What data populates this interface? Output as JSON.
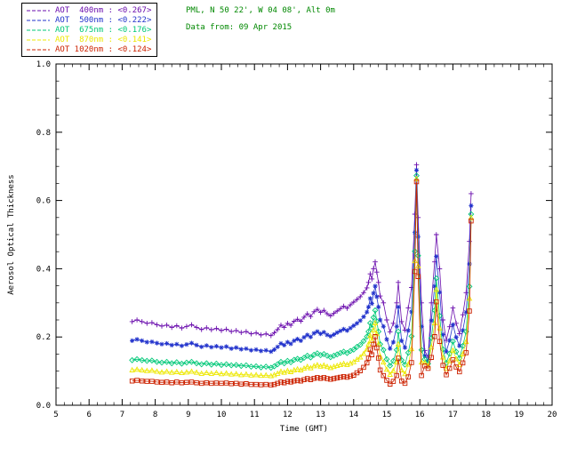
{
  "header": {
    "station_line": "PML, N 50 22', W 04 08', Alt 0m",
    "date_line": "Data from: 09 Apr 2015",
    "text_color": "#008800"
  },
  "chart_data": {
    "type": "line",
    "title": "",
    "xlabel": "Time (GMT)",
    "ylabel": "Aerosol Optical Thickness",
    "xlim": [
      5,
      20
    ],
    "ylim": [
      0.0,
      1.0
    ],
    "xticks": [
      5,
      6,
      7,
      8,
      9,
      10,
      11,
      12,
      13,
      14,
      15,
      16,
      17,
      18,
      19,
      20
    ],
    "yticks": [
      0.0,
      0.2,
      0.4,
      0.6,
      0.8,
      1.0
    ],
    "grid": false,
    "legend_position": "top-left",
    "x": [
      7.3,
      7.45,
      7.6,
      7.75,
      7.9,
      8.05,
      8.2,
      8.35,
      8.5,
      8.65,
      8.8,
      8.95,
      9.1,
      9.25,
      9.4,
      9.55,
      9.7,
      9.85,
      10.0,
      10.15,
      10.3,
      10.45,
      10.6,
      10.75,
      10.9,
      11.05,
      11.2,
      11.35,
      11.5,
      11.6,
      11.7,
      11.8,
      11.9,
      12.0,
      12.1,
      12.2,
      12.3,
      12.4,
      12.5,
      12.6,
      12.7,
      12.8,
      12.9,
      13.0,
      13.1,
      13.2,
      13.3,
      13.4,
      13.5,
      13.6,
      13.7,
      13.8,
      13.9,
      14.0,
      14.1,
      14.2,
      14.3,
      14.4,
      14.45,
      14.5,
      14.55,
      14.6,
      14.65,
      14.7,
      14.75,
      14.8,
      14.9,
      15.0,
      15.1,
      15.2,
      15.3,
      15.35,
      15.45,
      15.55,
      15.65,
      15.75,
      15.85,
      15.9,
      15.95,
      16.05,
      16.15,
      16.25,
      16.35,
      16.45,
      16.5,
      16.6,
      16.7,
      16.8,
      16.9,
      17.0,
      17.1,
      17.2,
      17.3,
      17.4,
      17.5,
      17.55
    ],
    "series": [
      {
        "name": "AOT  400nm",
        "mean_label": "<0.267>",
        "color": "#6a0dad",
        "marker": "plus",
        "values": [
          0.245,
          0.25,
          0.245,
          0.24,
          0.242,
          0.236,
          0.232,
          0.235,
          0.228,
          0.233,
          0.226,
          0.231,
          0.236,
          0.228,
          0.222,
          0.227,
          0.221,
          0.225,
          0.219,
          0.223,
          0.216,
          0.219,
          0.213,
          0.216,
          0.209,
          0.212,
          0.206,
          0.209,
          0.204,
          0.212,
          0.222,
          0.235,
          0.228,
          0.24,
          0.234,
          0.246,
          0.252,
          0.246,
          0.258,
          0.268,
          0.26,
          0.274,
          0.281,
          0.272,
          0.278,
          0.268,
          0.262,
          0.269,
          0.276,
          0.283,
          0.29,
          0.284,
          0.294,
          0.302,
          0.31,
          0.318,
          0.33,
          0.344,
          0.36,
          0.385,
          0.37,
          0.4,
          0.42,
          0.39,
          0.36,
          0.32,
          0.3,
          0.25,
          0.215,
          0.24,
          0.3,
          0.36,
          0.245,
          0.22,
          0.285,
          0.345,
          0.56,
          0.705,
          0.55,
          0.3,
          0.16,
          0.14,
          0.3,
          0.42,
          0.5,
          0.4,
          0.25,
          0.19,
          0.23,
          0.285,
          0.24,
          0.21,
          0.265,
          0.33,
          0.48,
          0.62
        ]
      },
      {
        "name": "AOT  500nm",
        "mean_label": "<0.222>",
        "color": "#2233cc",
        "marker": "asterisk",
        "values": [
          0.189,
          0.193,
          0.189,
          0.185,
          0.186,
          0.182,
          0.179,
          0.181,
          0.176,
          0.179,
          0.174,
          0.178,
          0.182,
          0.176,
          0.171,
          0.175,
          0.17,
          0.173,
          0.169,
          0.172,
          0.166,
          0.169,
          0.164,
          0.166,
          0.161,
          0.163,
          0.159,
          0.161,
          0.157,
          0.163,
          0.171,
          0.181,
          0.176,
          0.185,
          0.18,
          0.189,
          0.194,
          0.189,
          0.199,
          0.206,
          0.2,
          0.211,
          0.216,
          0.209,
          0.214,
          0.206,
          0.202,
          0.207,
          0.213,
          0.218,
          0.223,
          0.219,
          0.226,
          0.233,
          0.24,
          0.248,
          0.259,
          0.273,
          0.288,
          0.313,
          0.298,
          0.328,
          0.349,
          0.318,
          0.288,
          0.25,
          0.231,
          0.193,
          0.166,
          0.185,
          0.231,
          0.288,
          0.189,
          0.169,
          0.219,
          0.274,
          0.506,
          0.689,
          0.494,
          0.231,
          0.145,
          0.13,
          0.248,
          0.349,
          0.436,
          0.331,
          0.207,
          0.157,
          0.19,
          0.236,
          0.199,
          0.174,
          0.219,
          0.273,
          0.414,
          0.585
        ]
      },
      {
        "name": "AOT  675nm",
        "mean_label": "<0.176>",
        "color": "#00c878",
        "marker": "diamond",
        "values": [
          0.132,
          0.135,
          0.132,
          0.13,
          0.131,
          0.127,
          0.125,
          0.127,
          0.123,
          0.126,
          0.122,
          0.125,
          0.127,
          0.123,
          0.12,
          0.123,
          0.119,
          0.122,
          0.118,
          0.12,
          0.117,
          0.118,
          0.115,
          0.117,
          0.113,
          0.114,
          0.111,
          0.113,
          0.11,
          0.114,
          0.12,
          0.127,
          0.123,
          0.13,
          0.126,
          0.133,
          0.136,
          0.133,
          0.139,
          0.145,
          0.14,
          0.148,
          0.152,
          0.147,
          0.15,
          0.145,
          0.141,
          0.145,
          0.149,
          0.153,
          0.157,
          0.153,
          0.159,
          0.163,
          0.171,
          0.177,
          0.188,
          0.201,
          0.216,
          0.241,
          0.226,
          0.257,
          0.278,
          0.246,
          0.216,
          0.179,
          0.162,
          0.135,
          0.116,
          0.13,
          0.162,
          0.216,
          0.132,
          0.119,
          0.154,
          0.202,
          0.451,
          0.673,
          0.438,
          0.162,
          0.135,
          0.122,
          0.197,
          0.278,
          0.372,
          0.262,
          0.164,
          0.124,
          0.151,
          0.187,
          0.157,
          0.138,
          0.174,
          0.216,
          0.348,
          0.56
        ]
      },
      {
        "name": "AOT  870nm",
        "mean_label": "<0.141>",
        "color": "#ede800",
        "marker": "triangle",
        "values": [
          0.103,
          0.105,
          0.103,
          0.101,
          0.102,
          0.099,
          0.097,
          0.099,
          0.096,
          0.098,
          0.095,
          0.097,
          0.099,
          0.096,
          0.093,
          0.095,
          0.093,
          0.095,
          0.092,
          0.094,
          0.091,
          0.092,
          0.089,
          0.091,
          0.088,
          0.089,
          0.087,
          0.088,
          0.086,
          0.089,
          0.093,
          0.099,
          0.096,
          0.101,
          0.098,
          0.103,
          0.106,
          0.103,
          0.108,
          0.113,
          0.109,
          0.115,
          0.118,
          0.114,
          0.117,
          0.113,
          0.11,
          0.113,
          0.116,
          0.119,
          0.122,
          0.119,
          0.123,
          0.127,
          0.134,
          0.141,
          0.151,
          0.164,
          0.179,
          0.204,
          0.189,
          0.22,
          0.241,
          0.209,
          0.179,
          0.143,
          0.126,
          0.105,
          0.09,
          0.101,
          0.126,
          0.179,
          0.103,
          0.092,
          0.12,
          0.165,
          0.423,
          0.664,
          0.408,
          0.126,
          0.125,
          0.115,
          0.17,
          0.241,
          0.339,
          0.226,
          0.141,
          0.107,
          0.13,
          0.161,
          0.136,
          0.119,
          0.15,
          0.186,
          0.313,
          0.55
        ]
      },
      {
        "name": "AOT 1020nm",
        "mean_label": "<0.124>",
        "color": "#cc2200",
        "marker": "square",
        "values": [
          0.071,
          0.073,
          0.071,
          0.07,
          0.07,
          0.068,
          0.067,
          0.068,
          0.066,
          0.068,
          0.066,
          0.067,
          0.068,
          0.066,
          0.064,
          0.066,
          0.064,
          0.065,
          0.064,
          0.065,
          0.063,
          0.064,
          0.062,
          0.063,
          0.061,
          0.061,
          0.06,
          0.061,
          0.059,
          0.061,
          0.064,
          0.068,
          0.066,
          0.07,
          0.068,
          0.071,
          0.073,
          0.071,
          0.075,
          0.078,
          0.075,
          0.079,
          0.081,
          0.079,
          0.081,
          0.078,
          0.076,
          0.078,
          0.08,
          0.082,
          0.084,
          0.082,
          0.085,
          0.088,
          0.095,
          0.101,
          0.111,
          0.124,
          0.138,
          0.163,
          0.148,
          0.179,
          0.201,
          0.168,
          0.138,
          0.103,
          0.087,
          0.073,
          0.062,
          0.07,
          0.087,
          0.138,
          0.071,
          0.064,
          0.083,
          0.125,
          0.392,
          0.655,
          0.377,
          0.087,
          0.115,
          0.108,
          0.14,
          0.201,
          0.303,
          0.187,
          0.117,
          0.089,
          0.108,
          0.133,
          0.112,
          0.098,
          0.124,
          0.154,
          0.276,
          0.54
        ]
      }
    ]
  }
}
